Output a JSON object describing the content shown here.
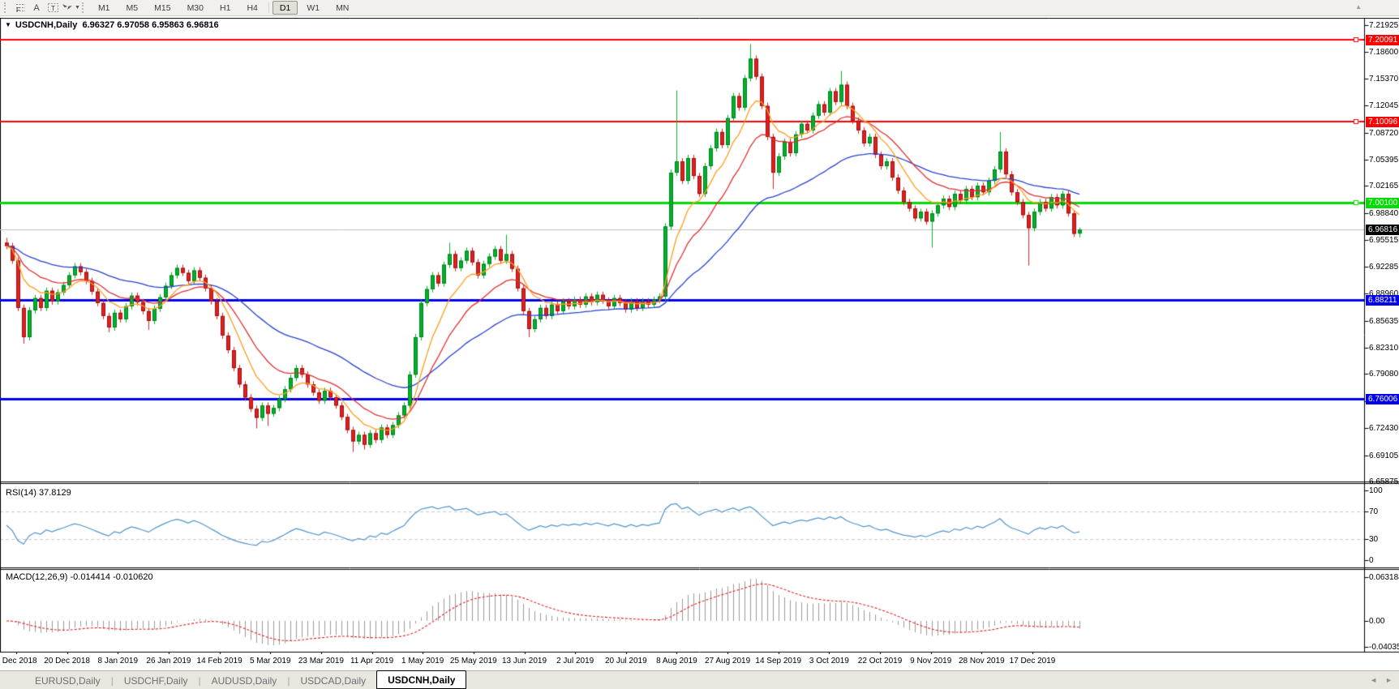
{
  "colors": {
    "up": "#00b22d",
    "up_border": "#007d1c",
    "down": "#e02020",
    "down_border": "#9c0f0f",
    "ma_fast": "#ff9d1e",
    "ma_mid": "#e03030",
    "ma_slow": "#2742d0",
    "rsi": "#4f94cd",
    "macd_hist": "#9a9a9a",
    "macd_signal": "#e02020",
    "grid_silver": "#c8c8c8",
    "current_line": "#c0c0c0"
  },
  "toolbar": {
    "tools": [
      {
        "name": "fibonacci"
      },
      {
        "name": "text",
        "glyph": "A"
      },
      {
        "name": "label",
        "glyph": "T"
      },
      {
        "name": "arrows"
      }
    ],
    "periods": [
      "M1",
      "M5",
      "M15",
      "M30",
      "H1",
      "H4",
      "D1",
      "W1",
      "MN"
    ],
    "active_period": "D1",
    "overflow_marker": "▲"
  },
  "chart": {
    "title": {
      "menu_icon": "▼",
      "symbol": "USDCNH,Daily",
      "ohlc_text": "6.96327 6.97058 6.95863 6.96816"
    }
  },
  "chart_data": {
    "type": "candlestick",
    "title": "USDCNH,Daily",
    "open": "6.96327",
    "high": "6.97058",
    "low": "6.95863",
    "close": "6.96816",
    "y_axis": {
      "ticks": [
        "7.21925",
        "7.18600",
        "7.15370",
        "7.12045",
        "7.08720",
        "7.05395",
        "7.02165",
        "6.98840",
        "6.95515",
        "6.92285",
        "6.88960",
        "6.85635",
        "6.82310",
        "6.79080",
        "6.75755",
        "6.72430",
        "6.69105",
        "6.65875"
      ],
      "top": 7.21925,
      "bottom": 6.65875
    },
    "x_axis": {
      "labels": [
        "1 Dec 2018",
        "20 Dec 2018",
        "8 Jan 2019",
        "26 Jan 2019",
        "14 Feb 2019",
        "5 Mar 2019",
        "23 Mar 2019",
        "11 Apr 2019",
        "1 May 2019",
        "25 May 2019",
        "13 Jun 2019",
        "2 Jul 2019",
        "20 Jul 2019",
        "8 Aug 2019",
        "27 Aug 2019",
        "14 Sep 2019",
        "3 Oct 2019",
        "22 Oct 2019",
        "9 Nov 2019",
        "28 Nov 2019",
        "17 Dec 2019"
      ]
    },
    "hlines": [
      {
        "price": 7.20091,
        "label": "7.20091",
        "color": "#ff0000",
        "width": 2,
        "marker": true
      },
      {
        "price": 7.10096,
        "label": "7.10096",
        "color": "#ff0000",
        "width": 2,
        "marker": true
      },
      {
        "price": 7.001,
        "label": "7.00100",
        "color": "#00dd00",
        "width": 3,
        "marker": true
      },
      {
        "price": 6.88211,
        "label": "6.88211",
        "color": "#0000ee",
        "width": 3,
        "marker": false
      },
      {
        "price": 6.76006,
        "label": "6.76006",
        "color": "#0000ee",
        "width": 3,
        "marker": false
      }
    ],
    "current_price": {
      "value": 6.96816,
      "label": "6.96816",
      "badge_bg": "#000000"
    },
    "candles": {
      "first_open": 6.952,
      "default_wick": 0.004,
      "closes": [
        6.948,
        6.93,
        6.872,
        6.836,
        6.869,
        6.884,
        6.872,
        6.893,
        6.88,
        6.891,
        6.9,
        6.912,
        6.923,
        6.916,
        6.905,
        6.892,
        6.878,
        6.862,
        6.848,
        6.866,
        6.858,
        6.874,
        6.887,
        6.879,
        6.868,
        6.856,
        6.871,
        6.885,
        6.899,
        6.912,
        6.921,
        6.915,
        6.905,
        6.918,
        6.909,
        6.896,
        6.88,
        6.862,
        6.838,
        6.82,
        6.798,
        6.778,
        6.762,
        6.748,
        6.737,
        6.752,
        6.742,
        6.749,
        6.76,
        6.772,
        6.786,
        6.798,
        6.79,
        6.778,
        6.768,
        6.758,
        6.77,
        6.762,
        6.752,
        6.738,
        6.722,
        6.708,
        6.716,
        6.704,
        6.718,
        6.71,
        6.725,
        6.716,
        6.728,
        6.74,
        6.752,
        6.79,
        6.836,
        6.878,
        6.895,
        6.912,
        6.902,
        6.925,
        6.938,
        6.921,
        6.93,
        6.942,
        6.928,
        6.912,
        6.926,
        6.935,
        6.944,
        6.93,
        6.938,
        6.92,
        6.896,
        6.868,
        6.846,
        6.858,
        6.872,
        6.862,
        6.876,
        6.868,
        6.88,
        6.874,
        6.882,
        6.876,
        6.886,
        6.879,
        6.888,
        6.881,
        6.874,
        6.884,
        6.878,
        6.87,
        6.88,
        6.872,
        6.88,
        6.876,
        6.882,
        6.886,
        6.972,
        7.038,
        7.052,
        7.028,
        7.056,
        7.034,
        7.012,
        7.046,
        7.068,
        7.088,
        7.072,
        7.105,
        7.132,
        7.118,
        7.154,
        7.178,
        7.156,
        7.12,
        7.082,
        7.038,
        7.058,
        7.076,
        7.062,
        7.085,
        7.098,
        7.09,
        7.108,
        7.122,
        7.112,
        7.138,
        7.125,
        7.146,
        7.12,
        7.102,
        7.09,
        7.074,
        7.082,
        7.06,
        7.046,
        7.052,
        7.032,
        7.016,
        7.002,
        6.994,
        6.982,
        6.99,
        6.978,
        6.988,
        6.998,
        7.006,
        6.996,
        7.012,
        7.004,
        7.018,
        7.008,
        7.022,
        7.014,
        7.028,
        7.042,
        7.064,
        7.036,
        7.014,
        7.002,
        6.986,
        6.97,
        6.99,
        7.002,
        6.994,
        7.008,
        6.998,
        7.012,
        6.988,
        6.963,
        6.96816
      ],
      "wick_overrides": {
        "0": {
          "high": 6.958
        },
        "3": {
          "low": 6.828
        },
        "18": {
          "low": 6.842
        },
        "25": {
          "low": 6.845
        },
        "44": {
          "low": 6.724
        },
        "46": {
          "low": 6.727
        },
        "61": {
          "low": 6.695
        },
        "63": {
          "low": 6.698
        },
        "78": {
          "high": 6.952
        },
        "88": {
          "high": 6.962
        },
        "92": {
          "low": 6.836
        },
        "116": {
          "low": 6.88
        },
        "118": {
          "high": 7.139
        },
        "131": {
          "high": 7.196
        },
        "135": {
          "low": 7.018
        },
        "147": {
          "high": 7.163
        },
        "163": {
          "low": 6.946
        },
        "175": {
          "high": 7.088
        },
        "180": {
          "low": 6.924
        },
        "189": {
          "open": 6.96327,
          "high": 6.97058,
          "low": 6.95863
        }
      }
    },
    "moving_averages": [
      {
        "type": "ema",
        "period": 8,
        "color": "#ff9d1e"
      },
      {
        "type": "ema",
        "period": 16,
        "color": "#e03030"
      },
      {
        "type": "ema",
        "period": 40,
        "color": "#2742d0"
      }
    ],
    "rsi": {
      "label": "RSI(14)",
      "value_text": "37.8129",
      "period": 14,
      "axis_labels": [
        "100",
        "70",
        "30",
        "0"
      ],
      "levels": [
        70,
        30
      ]
    },
    "macd": {
      "label": "MACD(12,26,9)",
      "value_text": "-0.014414 -0.010620",
      "fast": 12,
      "slow": 26,
      "signal": 9,
      "axis_labels": [
        {
          "text": "0.063184",
          "pos": "max"
        },
        {
          "text": "0.00",
          "pos": "zero"
        },
        {
          "text": "-0.040351",
          "pos": "min"
        }
      ]
    }
  },
  "tabs": {
    "items": [
      {
        "label": "EURUSD,Daily",
        "active": false
      },
      {
        "label": "USDCHF,Daily",
        "active": false
      },
      {
        "label": "AUDUSD,Daily",
        "active": false
      },
      {
        "label": "USDCAD,Daily",
        "active": false
      },
      {
        "label": "USDCNH,Daily",
        "active": true
      }
    ],
    "scroll_left": "◄",
    "scroll_right": "►"
  }
}
